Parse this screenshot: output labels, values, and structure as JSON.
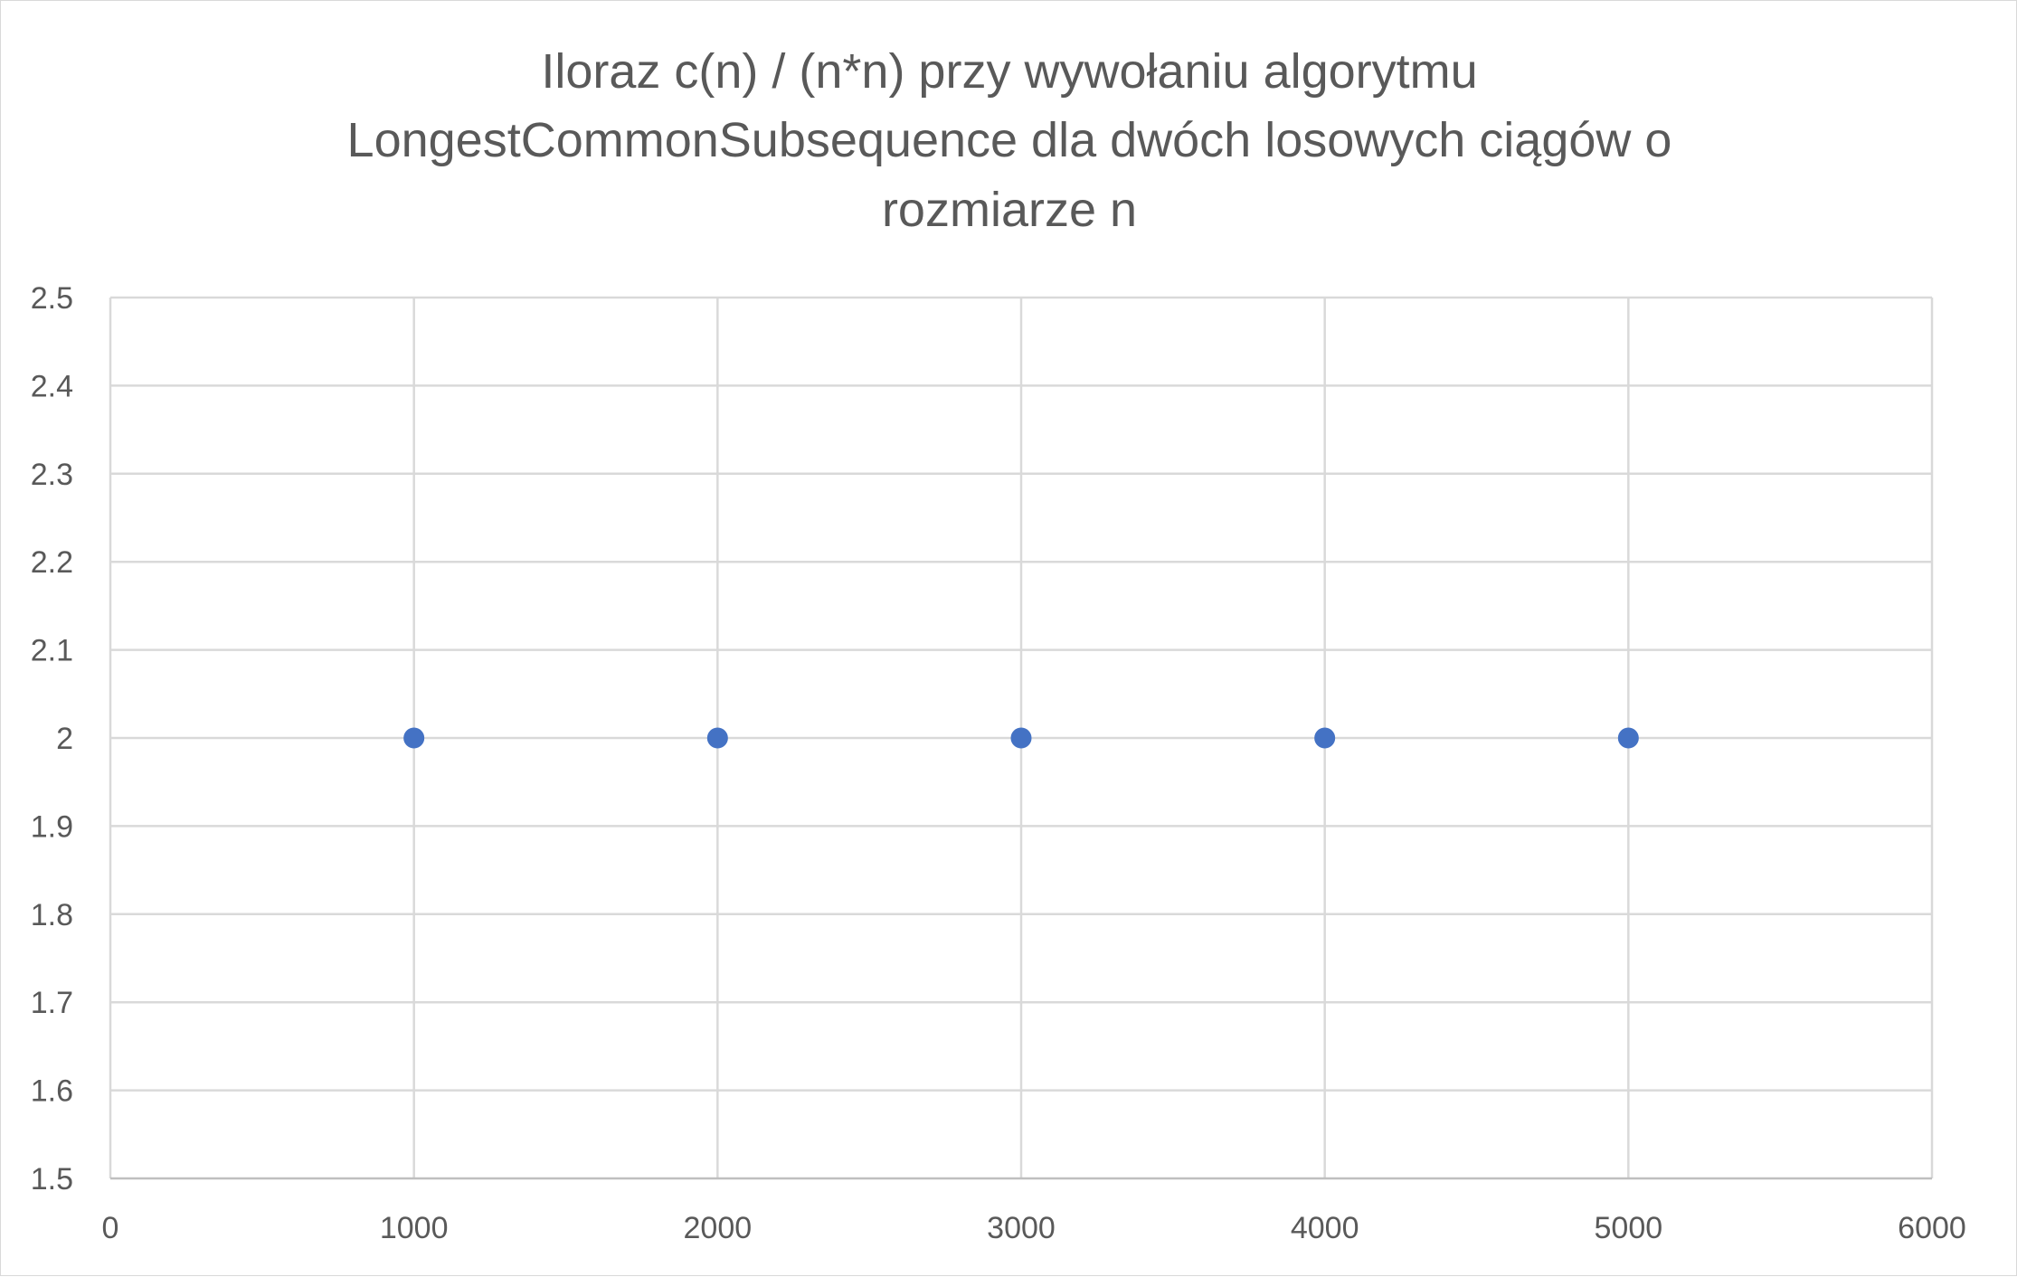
{
  "chart_data": {
    "type": "scatter",
    "title": "Iloraz c(n) / (n*n) przy wywołaniu algorytmu LongestCommonSubsequence dla dwóch losowych ciągów o rozmiarze n",
    "title_lines": [
      "Iloraz c(n) / (n*n) przy wywołaniu algorytmu",
      "LongestCommonSubsequence dla dwóch losowych ciągów o",
      "rozmiarze n"
    ],
    "xlabel": "",
    "ylabel": "",
    "xlim": [
      0,
      6000
    ],
    "ylim": [
      1.5,
      2.5
    ],
    "x_ticks": [
      "0",
      "1000",
      "2000",
      "3000",
      "4000",
      "5000",
      "6000"
    ],
    "y_ticks": [
      "2.5",
      "2.4",
      "2.3",
      "2.2",
      "2.1",
      "2",
      "1.9",
      "1.8",
      "1.7",
      "1.6",
      "1.5"
    ],
    "grid": true,
    "legend": "none",
    "series": [
      {
        "x": [
          1000,
          2000,
          3000,
          4000,
          5000
        ],
        "y": [
          2,
          2,
          2,
          2,
          2
        ],
        "color": "#4472c4"
      }
    ]
  }
}
